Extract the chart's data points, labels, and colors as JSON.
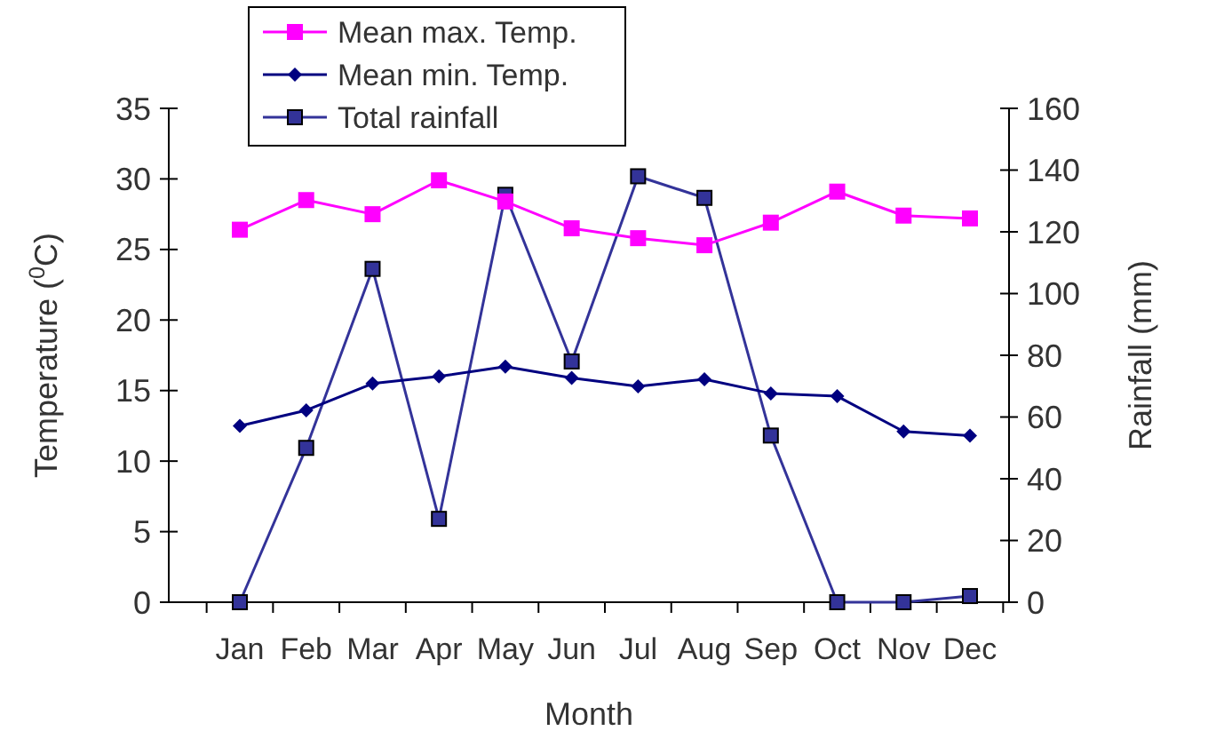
{
  "chart_data": {
    "type": "line",
    "xlabel": "Month",
    "ylabel": "Temperature ($^{0}$C)",
    "y2label": "Rainfall (mm)",
    "categories": [
      "Jan",
      "Feb",
      "Mar",
      "Apr",
      "May",
      "Jun",
      "Jul",
      "Aug",
      "Sep",
      "Oct",
      "Nov",
      "Dec"
    ],
    "series": [
      {
        "name": "Mean max. Temp.",
        "color": "#ff00ff",
        "marker": "square",
        "values": [
          26.4,
          28.5,
          27.5,
          29.9,
          28.4,
          26.5,
          25.8,
          25.3,
          26.9,
          29.1,
          27.4,
          27.2
        ]
      },
      {
        "name": "Mean min. Temp.",
        "color": "#000080",
        "marker": "diamond",
        "values": [
          12.5,
          13.6,
          15.5,
          16,
          16.7,
          15.9,
          15.3,
          15.8,
          14.8,
          14.6,
          12.1,
          11.8
        ]
      },
      {
        "name": "Total rainfall",
        "color": "#333399",
        "marker": "square",
        "axis": "y2",
        "values": [
          0,
          50,
          108,
          27,
          132,
          78,
          138,
          131,
          54,
          0,
          0,
          2
        ]
      }
    ],
    "ylim": [
      0,
      35
    ],
    "yticks": [
      0,
      5,
      10,
      15,
      20,
      25,
      30,
      35
    ],
    "y2lim": [
      0,
      160
    ],
    "y2ticks": [
      0,
      20,
      40,
      60,
      80,
      100,
      120,
      140,
      160
    ],
    "grid": false,
    "legend": "top left"
  }
}
